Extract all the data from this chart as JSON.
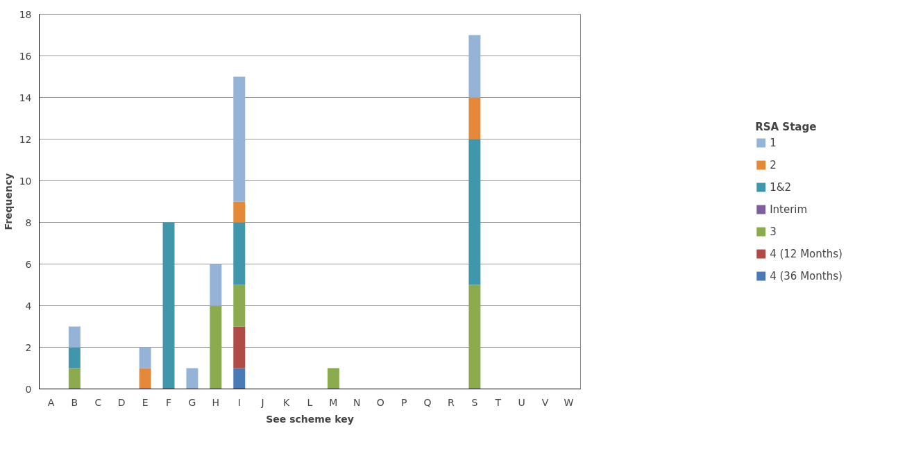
{
  "chart_data": {
    "type": "bar",
    "stacked": true,
    "xlabel": "See scheme key",
    "ylabel": "Frequency",
    "legend_title": "RSA Stage",
    "legend": "right",
    "grid": "y",
    "categories": [
      "A",
      "B",
      "C",
      "D",
      "E",
      "F",
      "G",
      "H",
      "I",
      "J",
      "K",
      "L",
      "M",
      "N",
      "O",
      "P",
      "Q",
      "R",
      "S",
      "T",
      "U",
      "V",
      "W"
    ],
    "ylim": [
      0,
      18
    ],
    "yticks": [
      0,
      2,
      4,
      6,
      8,
      10,
      12,
      14,
      16,
      18
    ],
    "series": [
      {
        "name": "4 (36 Months)",
        "color": "#4a7ab5",
        "values": [
          null,
          null,
          null,
          null,
          null,
          null,
          null,
          null,
          1,
          null,
          null,
          null,
          null,
          null,
          null,
          null,
          null,
          null,
          null,
          null,
          null,
          null,
          null
        ]
      },
      {
        "name": "4 (12 Months)",
        "color": "#b04a47",
        "values": [
          null,
          null,
          null,
          null,
          null,
          null,
          null,
          null,
          2,
          null,
          null,
          null,
          null,
          null,
          null,
          null,
          null,
          null,
          null,
          null,
          null,
          null,
          null
        ]
      },
      {
        "name": "3",
        "color": "#8cab4e",
        "values": [
          null,
          1,
          null,
          null,
          null,
          null,
          null,
          4,
          2,
          null,
          null,
          null,
          1,
          null,
          null,
          null,
          null,
          null,
          5,
          null,
          null,
          null,
          null
        ]
      },
      {
        "name": "Interim",
        "color": "#7d5fa0",
        "values": [
          null,
          null,
          null,
          null,
          null,
          null,
          null,
          null,
          null,
          null,
          null,
          null,
          null,
          null,
          null,
          null,
          null,
          null,
          null,
          null,
          null,
          null,
          null
        ]
      },
      {
        "name": "1&2",
        "color": "#4097ac",
        "values": [
          null,
          1,
          null,
          null,
          null,
          8,
          null,
          null,
          3,
          null,
          null,
          null,
          null,
          null,
          null,
          null,
          null,
          null,
          7,
          null,
          null,
          null,
          null
        ]
      },
      {
        "name": "2",
        "color": "#e4883a",
        "values": [
          null,
          null,
          null,
          null,
          1,
          null,
          null,
          null,
          1,
          null,
          null,
          null,
          null,
          null,
          null,
          null,
          null,
          null,
          2,
          null,
          null,
          null,
          null
        ]
      },
      {
        "name": "1",
        "color": "#95b3d7",
        "values": [
          null,
          1,
          null,
          null,
          1,
          null,
          1,
          2,
          6,
          null,
          null,
          null,
          null,
          null,
          null,
          null,
          null,
          null,
          3,
          null,
          null,
          null,
          null
        ]
      }
    ]
  }
}
